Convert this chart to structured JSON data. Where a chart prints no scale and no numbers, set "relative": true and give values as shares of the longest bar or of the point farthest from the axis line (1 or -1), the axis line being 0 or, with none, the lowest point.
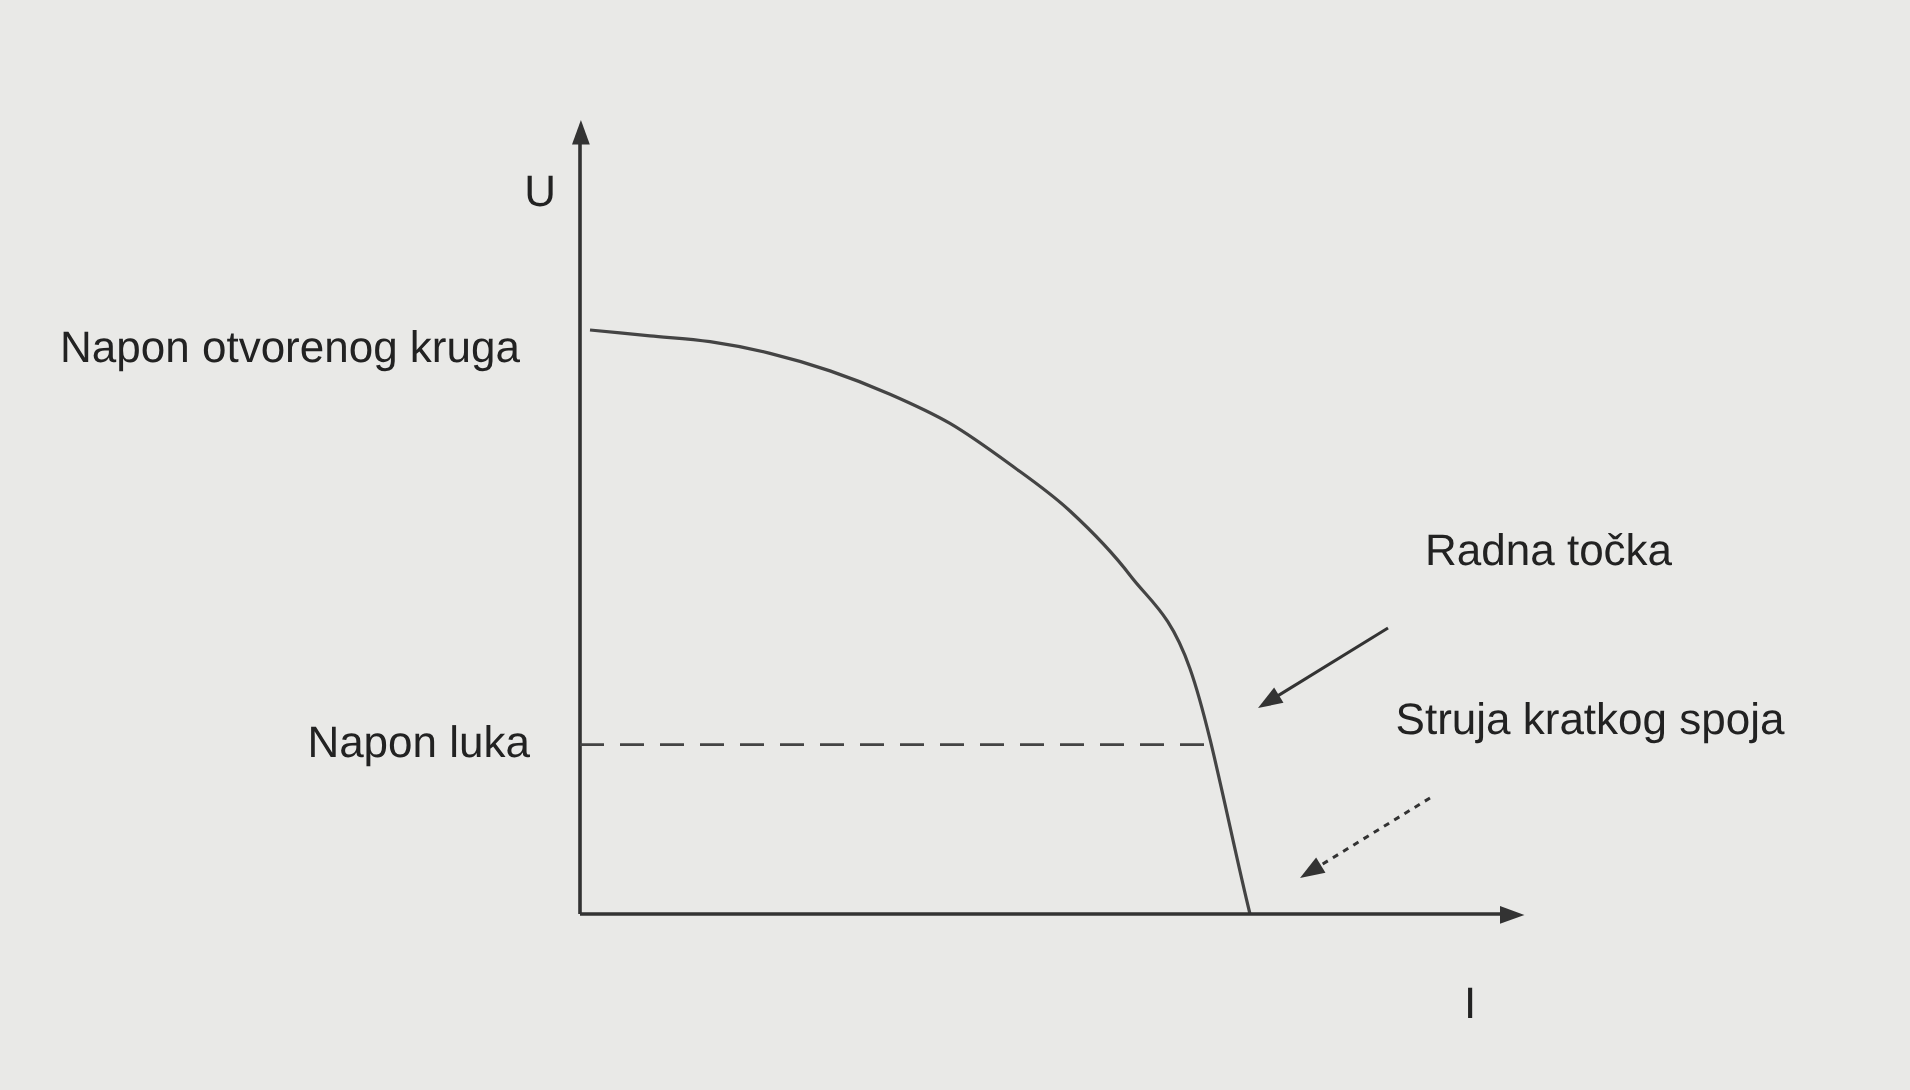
{
  "chart_data": {
    "type": "line",
    "relative": true,
    "xlabel": "I",
    "ylabel": "U",
    "categories": [
      null,
      null,
      null,
      null,
      null,
      null,
      null,
      null,
      null,
      null,
      null,
      null
    ],
    "series": [
      {
        "color": "#444444",
        "values": [
          1,
          0.99,
          0.98,
          0.96,
          0.93,
          0.89,
          0.84,
          0.77,
          0.69,
          0.58,
          0.42,
          0
        ]
      }
    ],
    "marker": "none",
    "grid": false,
    "legend": false,
    "ref_lines": [
      {
        "axis": "y",
        "value": 0.29,
        "label": "Napon luka",
        "line_style": "dashed",
        "color": "#444444"
      }
    ],
    "annotations": [
      "Napon otvorenog kruga",
      "Radna točka",
      "Struja kratkog spoja"
    ]
  }
}
